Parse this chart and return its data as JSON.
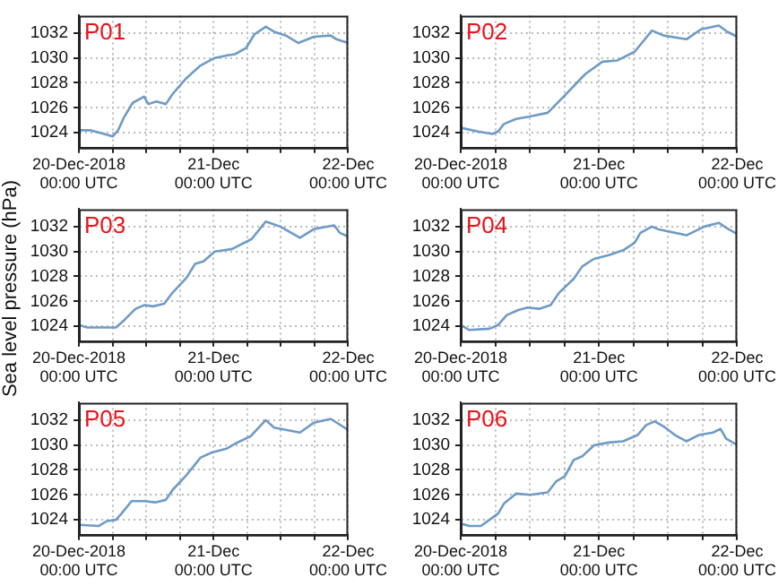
{
  "chart_data": [
    {
      "type": "line",
      "title": "P01",
      "x": [
        "2018-12-20T00:00",
        "2018-12-20T02:00",
        "2018-12-20T04:30",
        "2018-12-20T06:00",
        "2018-12-20T07:00",
        "2018-12-20T08:00",
        "2018-12-20T09:36",
        "2018-12-20T11:36",
        "2018-12-20T12:24",
        "2018-12-20T13:48",
        "2018-12-20T15:30",
        "2018-12-20T16:42",
        "2018-12-20T19:12",
        "2018-12-20T21:42",
        "2018-12-21T00:12",
        "2018-12-21T02:18",
        "2018-12-21T03:48",
        "2018-12-21T05:48",
        "2018-12-21T07:18",
        "2018-12-21T09:18",
        "2018-12-21T10:48",
        "2018-12-21T12:54",
        "2018-12-21T15:06",
        "2018-12-21T17:54",
        "2018-12-21T20:54",
        "2018-12-21T21:54",
        "2018-12-22T00:00"
      ],
      "series": [
        {
          "color": "#6f9bc6",
          "values": [
            1024.2,
            1024.2,
            1023.9,
            1023.7,
            1024.2,
            1025.2,
            1026.4,
            1026.9,
            1026.3,
            1026.5,
            1026.3,
            1027.1,
            1028.4,
            1029.4,
            1030.0,
            1030.2,
            1030.3,
            1030.8,
            1031.9,
            1032.5,
            1032.1,
            1031.8,
            1031.2,
            1031.7,
            1031.8,
            1031.5,
            1031.2
          ]
        }
      ],
      "xlim": [
        "2018-12-20T00:00",
        "2018-12-22T00:00"
      ],
      "ylim": [
        1022.8,
        1033.4
      ],
      "yticks": [
        1024,
        1026,
        1028,
        1030,
        1032
      ],
      "xticks": [
        {
          "value": "2018-12-20T00:00",
          "label": "20-Dec-2018\n00:00 UTC"
        },
        {
          "value": "2018-12-20T06:00",
          "label": null
        },
        {
          "value": "2018-12-20T12:00",
          "label": null
        },
        {
          "value": "2018-12-20T18:00",
          "label": null
        },
        {
          "value": "2018-12-21T00:00",
          "label": "21-Dec\n00:00 UTC"
        },
        {
          "value": "2018-12-21T06:00",
          "label": null
        },
        {
          "value": "2018-12-21T12:00",
          "label": null
        },
        {
          "value": "2018-12-21T18:00",
          "label": null
        },
        {
          "value": "2018-12-22T00:00",
          "label": "22-Dec\n00:00 UTC"
        }
      ],
      "grid": true,
      "legend": false,
      "marker": "none"
    },
    {
      "type": "line",
      "title": "P02",
      "x": [
        "2018-12-20T00:00",
        "2018-12-20T03:00",
        "2018-12-20T05:30",
        "2018-12-20T06:30",
        "2018-12-20T07:30",
        "2018-12-20T09:36",
        "2018-12-20T12:00",
        "2018-12-20T15:06",
        "2018-12-20T18:06",
        "2018-12-20T21:36",
        "2018-12-21T00:36",
        "2018-12-21T03:12",
        "2018-12-21T06:12",
        "2018-12-21T09:12",
        "2018-12-21T11:12",
        "2018-12-21T15:12",
        "2018-12-21T17:42",
        "2018-12-21T20:48",
        "2018-12-21T22:18",
        "2018-12-22T00:00"
      ],
      "series": [
        {
          "color": "#6f9bc6",
          "values": [
            1024.4,
            1024.1,
            1023.9,
            1024.1,
            1024.7,
            1025.1,
            1025.3,
            1025.6,
            1027.0,
            1028.7,
            1029.7,
            1029.8,
            1030.5,
            1032.2,
            1031.8,
            1031.5,
            1032.3,
            1032.6,
            1032.1,
            1031.7
          ]
        }
      ],
      "xlim": [
        "2018-12-20T00:00",
        "2018-12-22T00:00"
      ],
      "ylim": [
        1022.8,
        1033.4
      ],
      "yticks": [
        1024,
        1026,
        1028,
        1030,
        1032
      ],
      "xticks": [
        {
          "value": "2018-12-20T00:00",
          "label": "20-Dec-2018\n00:00 UTC"
        },
        {
          "value": "2018-12-20T06:00",
          "label": null
        },
        {
          "value": "2018-12-20T12:00",
          "label": null
        },
        {
          "value": "2018-12-20T18:00",
          "label": null
        },
        {
          "value": "2018-12-21T00:00",
          "label": "21-Dec\n00:00 UTC"
        },
        {
          "value": "2018-12-21T06:00",
          "label": null
        },
        {
          "value": "2018-12-21T12:00",
          "label": null
        },
        {
          "value": "2018-12-21T18:00",
          "label": null
        },
        {
          "value": "2018-12-22T00:00",
          "label": "22-Dec\n00:00 UTC"
        }
      ],
      "grid": true,
      "legend": false,
      "marker": "none"
    },
    {
      "type": "line",
      "title": "P03",
      "ylabel": "Sea level pressure (hPa)",
      "x": [
        "2018-12-20T00:00",
        "2018-12-20T01:30",
        "2018-12-20T06:36",
        "2018-12-20T08:06",
        "2018-12-20T10:06",
        "2018-12-20T11:42",
        "2018-12-20T13:12",
        "2018-12-20T15:12",
        "2018-12-20T16:42",
        "2018-12-20T19:12",
        "2018-12-20T20:42",
        "2018-12-20T22:12",
        "2018-12-21T00:12",
        "2018-12-21T03:18",
        "2018-12-21T06:48",
        "2018-12-21T09:18",
        "2018-12-21T11:54",
        "2018-12-21T15:24",
        "2018-12-21T17:54",
        "2018-12-21T21:30",
        "2018-12-21T22:30",
        "2018-12-22T00:00"
      ],
      "series": [
        {
          "color": "#6f9bc6",
          "values": [
            1024.1,
            1023.9,
            1023.9,
            1024.5,
            1025.4,
            1025.7,
            1025.6,
            1025.8,
            1026.7,
            1027.9,
            1029.0,
            1029.2,
            1030.0,
            1030.2,
            1031.0,
            1032.4,
            1032.0,
            1031.1,
            1031.8,
            1032.1,
            1031.5,
            1031.2
          ]
        }
      ],
      "xlim": [
        "2018-12-20T00:00",
        "2018-12-22T00:00"
      ],
      "ylim": [
        1022.8,
        1033.4
      ],
      "yticks": [
        1024,
        1026,
        1028,
        1030,
        1032
      ],
      "xticks": [
        {
          "value": "2018-12-20T00:00",
          "label": "20-Dec-2018\n00:00 UTC"
        },
        {
          "value": "2018-12-20T06:00",
          "label": null
        },
        {
          "value": "2018-12-20T12:00",
          "label": null
        },
        {
          "value": "2018-12-20T18:00",
          "label": null
        },
        {
          "value": "2018-12-21T00:00",
          "label": "21-Dec\n00:00 UTC"
        },
        {
          "value": "2018-12-21T06:00",
          "label": null
        },
        {
          "value": "2018-12-21T12:00",
          "label": null
        },
        {
          "value": "2018-12-21T18:00",
          "label": null
        },
        {
          "value": "2018-12-22T00:00",
          "label": "22-Dec\n00:00 UTC"
        }
      ],
      "grid": true,
      "legend": false,
      "marker": "none"
    },
    {
      "type": "line",
      "title": "P04",
      "x": [
        "2018-12-20T00:00",
        "2018-12-20T01:30",
        "2018-12-20T05:00",
        "2018-12-20T06:30",
        "2018-12-20T08:00",
        "2018-12-20T10:00",
        "2018-12-20T11:36",
        "2018-12-20T13:36",
        "2018-12-20T15:36",
        "2018-12-20T17:06",
        "2018-12-20T19:36",
        "2018-12-20T21:06",
        "2018-12-20T23:06",
        "2018-12-21T01:42",
        "2018-12-21T04:12",
        "2018-12-21T06:12",
        "2018-12-21T07:12",
        "2018-12-21T09:12",
        "2018-12-21T10:12",
        "2018-12-21T15:12",
        "2018-12-21T18:18",
        "2018-12-21T20:48",
        "2018-12-21T22:06",
        "2018-12-22T00:00"
      ],
      "series": [
        {
          "color": "#6f9bc6",
          "values": [
            1024.1,
            1023.7,
            1023.8,
            1024.1,
            1024.9,
            1025.3,
            1025.5,
            1025.4,
            1025.7,
            1026.7,
            1027.8,
            1028.8,
            1029.4,
            1029.7,
            1030.1,
            1030.7,
            1031.5,
            1032.0,
            1031.8,
            1031.3,
            1032.0,
            1032.3,
            1031.9,
            1031.4
          ]
        }
      ],
      "xlim": [
        "2018-12-20T00:00",
        "2018-12-22T00:00"
      ],
      "ylim": [
        1022.8,
        1033.4
      ],
      "yticks": [
        1024,
        1026,
        1028,
        1030,
        1032
      ],
      "xticks": [
        {
          "value": "2018-12-20T00:00",
          "label": "20-Dec-2018\n00:00 UTC"
        },
        {
          "value": "2018-12-20T06:00",
          "label": null
        },
        {
          "value": "2018-12-20T12:00",
          "label": null
        },
        {
          "value": "2018-12-20T18:00",
          "label": null
        },
        {
          "value": "2018-12-21T00:00",
          "label": "21-Dec\n00:00 UTC"
        },
        {
          "value": "2018-12-21T06:00",
          "label": null
        },
        {
          "value": "2018-12-21T12:00",
          "label": null
        },
        {
          "value": "2018-12-21T18:00",
          "label": null
        },
        {
          "value": "2018-12-22T00:00",
          "label": "22-Dec\n00:00 UTC"
        }
      ],
      "grid": true,
      "legend": false,
      "marker": "none"
    },
    {
      "type": "line",
      "title": "P05",
      "x": [
        "2018-12-20T00:00",
        "2018-12-20T03:30",
        "2018-12-20T05:00",
        "2018-12-20T06:36",
        "2018-12-20T07:36",
        "2018-12-20T09:24",
        "2018-12-20T11:36",
        "2018-12-20T13:36",
        "2018-12-20T15:30",
        "2018-12-20T16:42",
        "2018-12-20T19:12",
        "2018-12-20T21:42",
        "2018-12-20T23:42",
        "2018-12-21T02:18",
        "2018-12-21T03:48",
        "2018-12-21T06:36",
        "2018-12-21T09:18",
        "2018-12-21T10:48",
        "2018-12-21T15:24",
        "2018-12-21T17:54",
        "2018-12-21T20:54",
        "2018-12-22T00:00"
      ],
      "series": [
        {
          "color": "#6f9bc6",
          "values": [
            1023.6,
            1023.5,
            1023.9,
            1024.0,
            1024.5,
            1025.5,
            1025.5,
            1025.4,
            1025.6,
            1026.4,
            1027.6,
            1029.0,
            1029.4,
            1029.7,
            1030.1,
            1030.7,
            1032.0,
            1031.4,
            1031.0,
            1031.8,
            1032.1,
            1031.2
          ]
        }
      ],
      "xlim": [
        "2018-12-20T00:00",
        "2018-12-22T00:00"
      ],
      "ylim": [
        1022.8,
        1033.4
      ],
      "yticks": [
        1024,
        1026,
        1028,
        1030,
        1032
      ],
      "xticks": [
        {
          "value": "2018-12-20T00:00",
          "label": "20-Dec-2018\n00:00 UTC"
        },
        {
          "value": "2018-12-20T06:00",
          "label": null
        },
        {
          "value": "2018-12-20T12:00",
          "label": null
        },
        {
          "value": "2018-12-20T18:00",
          "label": null
        },
        {
          "value": "2018-12-21T00:00",
          "label": "21-Dec\n00:00 UTC"
        },
        {
          "value": "2018-12-21T06:00",
          "label": null
        },
        {
          "value": "2018-12-21T12:00",
          "label": null
        },
        {
          "value": "2018-12-21T18:00",
          "label": null
        },
        {
          "value": "2018-12-22T00:00",
          "label": "22-Dec\n00:00 UTC"
        }
      ],
      "grid": true,
      "legend": false,
      "marker": "none"
    },
    {
      "type": "line",
      "title": "P06",
      "x": [
        "2018-12-20T00:00",
        "2018-12-20T01:30",
        "2018-12-20T03:30",
        "2018-12-20T05:00",
        "2018-12-20T06:30",
        "2018-12-20T07:30",
        "2018-12-20T09:36",
        "2018-12-20T12:06",
        "2018-12-20T15:06",
        "2018-12-20T16:36",
        "2018-12-20T18:06",
        "2018-12-20T19:36",
        "2018-12-20T21:06",
        "2018-12-20T23:12",
        "2018-12-21T01:42",
        "2018-12-21T04:12",
        "2018-12-21T06:42",
        "2018-12-21T08:12",
        "2018-12-21T09:42",
        "2018-12-21T11:12",
        "2018-12-21T13:12",
        "2018-12-21T15:12",
        "2018-12-21T17:18",
        "2018-12-21T19:48",
        "2018-12-21T21:06",
        "2018-12-21T22:06",
        "2018-12-22T00:00"
      ],
      "series": [
        {
          "color": "#6f9bc6",
          "values": [
            1023.7,
            1023.5,
            1023.5,
            1024.0,
            1024.5,
            1025.3,
            1026.1,
            1026.0,
            1026.2,
            1027.1,
            1027.5,
            1028.8,
            1029.1,
            1030.0,
            1030.2,
            1030.3,
            1030.8,
            1031.6,
            1031.9,
            1031.5,
            1030.8,
            1030.3,
            1030.8,
            1031.0,
            1031.3,
            1030.5,
            1030.0
          ]
        }
      ],
      "xlim": [
        "2018-12-20T00:00",
        "2018-12-22T00:00"
      ],
      "ylim": [
        1022.8,
        1033.4
      ],
      "yticks": [
        1024,
        1026,
        1028,
        1030,
        1032
      ],
      "xticks": [
        {
          "value": "2018-12-20T00:00",
          "label": "20-Dec-2018\n00:00 UTC"
        },
        {
          "value": "2018-12-20T06:00",
          "label": null
        },
        {
          "value": "2018-12-20T12:00",
          "label": null
        },
        {
          "value": "2018-12-20T18:00",
          "label": null
        },
        {
          "value": "2018-12-21T00:00",
          "label": "21-Dec\n00:00 UTC"
        },
        {
          "value": "2018-12-21T06:00",
          "label": null
        },
        {
          "value": "2018-12-21T12:00",
          "label": null
        },
        {
          "value": "2018-12-21T18:00",
          "label": null
        },
        {
          "value": "2018-12-22T00:00",
          "label": "22-Dec\n00:00 UTC"
        }
      ],
      "grid": true,
      "legend": false,
      "marker": "none"
    }
  ]
}
